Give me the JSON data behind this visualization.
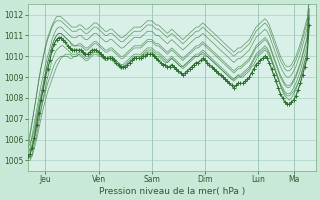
{
  "title": "",
  "xlabel": "Pression niveau de la mer( hPa )",
  "ylabel": "",
  "bg_color": "#c8e8d8",
  "plot_bg_color": "#d8f0e8",
  "grid_color": "#a0c8b8",
  "line_color": "#2d6e2d",
  "ylim": [
    1004.5,
    1012.5
  ],
  "xlim": [
    0,
    130
  ],
  "day_ticks": [
    8,
    32,
    56,
    80,
    104,
    120
  ],
  "day_labels": [
    "Jeu",
    "Ven",
    "Sam",
    "Dim",
    "Lun",
    "Ma"
  ],
  "yticks": [
    1005,
    1006,
    1007,
    1008,
    1009,
    1010,
    1011,
    1012
  ],
  "series": [
    [
      1005.2,
      1005.1,
      1005.3,
      1005.8,
      1006.2,
      1006.8,
      1007.4,
      1007.9,
      1008.3,
      1008.7,
      1009.0,
      1009.3,
      1009.6,
      1009.8,
      1009.9,
      1010.0,
      1010.0,
      1010.0,
      1010.0,
      1009.9,
      1009.9,
      1010.0,
      1010.0,
      1010.1,
      1010.0,
      1009.9,
      1009.8,
      1009.8,
      1009.9,
      1010.0,
      1010.1,
      1010.1,
      1010.0,
      1010.0,
      1009.9,
      1009.9,
      1009.9,
      1010.0,
      1009.9,
      1009.8,
      1009.7,
      1009.6,
      1009.5,
      1009.5,
      1009.6,
      1009.7,
      1009.8,
      1009.9,
      1010.0,
      1010.0,
      1010.0,
      1010.0,
      1010.1,
      1010.1,
      1010.2,
      1010.2,
      1010.2,
      1010.1,
      1010.0,
      1010.0,
      1009.9,
      1009.8,
      1009.7,
      1009.7,
      1009.8,
      1009.9,
      1009.8,
      1009.7,
      1009.6,
      1009.5,
      1009.5,
      1009.6,
      1009.7,
      1009.8,
      1009.9,
      1010.0,
      1010.0,
      1010.0,
      1010.1,
      1010.1,
      1010.0,
      1010.0,
      1009.9,
      1009.8,
      1009.7,
      1009.6,
      1009.5,
      1009.4,
      1009.3,
      1009.2,
      1009.1,
      1009.0,
      1008.9,
      1008.9,
      1009.0,
      1009.1,
      1009.0,
      1009.0,
      1009.1,
      1009.2,
      1009.3,
      1009.5,
      1009.6,
      1009.8,
      1010.0,
      1010.1,
      1010.2,
      1010.3,
      1010.2,
      1010.0,
      1009.8,
      1009.5,
      1009.2,
      1008.9,
      1008.6,
      1008.4,
      1008.2,
      1008.1,
      1008.1,
      1008.2,
      1008.3,
      1008.5,
      1008.7,
      1009.0,
      1009.3,
      1009.7,
      1010.1,
      1011.8
    ],
    [
      1005.0,
      1005.0,
      1005.2,
      1005.6,
      1006.0,
      1006.5,
      1007.0,
      1007.5,
      1007.9,
      1008.3,
      1008.6,
      1008.9,
      1009.2,
      1009.5,
      1009.7,
      1009.9,
      1010.0,
      1010.1,
      1010.1,
      1010.1,
      1010.0,
      1010.0,
      1010.0,
      1010.1,
      1010.1,
      1010.0,
      1009.9,
      1009.9,
      1010.0,
      1010.1,
      1010.2,
      1010.2,
      1010.1,
      1010.0,
      1009.9,
      1009.8,
      1009.8,
      1009.9,
      1009.8,
      1009.7,
      1009.6,
      1009.5,
      1009.4,
      1009.4,
      1009.5,
      1009.6,
      1009.7,
      1009.8,
      1009.9,
      1010.0,
      1010.0,
      1010.0,
      1010.1,
      1010.2,
      1010.3,
      1010.3,
      1010.3,
      1010.2,
      1010.1,
      1010.1,
      1010.0,
      1009.9,
      1009.8,
      1009.7,
      1009.8,
      1009.9,
      1009.8,
      1009.7,
      1009.6,
      1009.5,
      1009.4,
      1009.5,
      1009.6,
      1009.7,
      1009.8,
      1009.9,
      1010.0,
      1010.0,
      1010.1,
      1010.2,
      1010.1,
      1010.0,
      1009.9,
      1009.8,
      1009.7,
      1009.6,
      1009.5,
      1009.4,
      1009.3,
      1009.2,
      1009.1,
      1009.0,
      1008.9,
      1008.8,
      1008.9,
      1009.0,
      1009.0,
      1009.1,
      1009.2,
      1009.3,
      1009.4,
      1009.6,
      1009.8,
      1010.0,
      1010.1,
      1010.2,
      1010.3,
      1010.4,
      1010.3,
      1010.1,
      1009.8,
      1009.5,
      1009.2,
      1008.9,
      1008.6,
      1008.3,
      1008.1,
      1008.0,
      1007.9,
      1008.0,
      1008.2,
      1008.4,
      1008.7,
      1009.0,
      1009.4,
      1009.8,
      1010.2,
      1011.9
    ],
    [
      1005.4,
      1005.5,
      1005.7,
      1006.0,
      1006.5,
      1007.0,
      1007.5,
      1008.0,
      1008.5,
      1009.0,
      1009.4,
      1009.8,
      1010.1,
      1010.3,
      1010.4,
      1010.5,
      1010.5,
      1010.4,
      1010.3,
      1010.2,
      1010.1,
      1010.1,
      1010.1,
      1010.2,
      1010.2,
      1010.1,
      1010.0,
      1010.0,
      1010.1,
      1010.2,
      1010.3,
      1010.3,
      1010.2,
      1010.1,
      1010.0,
      1009.9,
      1009.9,
      1010.0,
      1010.0,
      1009.9,
      1009.8,
      1009.7,
      1009.6,
      1009.6,
      1009.7,
      1009.8,
      1009.9,
      1010.0,
      1010.1,
      1010.1,
      1010.1,
      1010.1,
      1010.2,
      1010.3,
      1010.4,
      1010.4,
      1010.4,
      1010.3,
      1010.2,
      1010.2,
      1010.1,
      1010.0,
      1009.9,
      1009.8,
      1009.9,
      1010.0,
      1009.9,
      1009.8,
      1009.7,
      1009.6,
      1009.5,
      1009.6,
      1009.7,
      1009.8,
      1009.9,
      1010.0,
      1010.1,
      1010.1,
      1010.2,
      1010.3,
      1010.2,
      1010.1,
      1010.0,
      1009.9,
      1009.8,
      1009.7,
      1009.6,
      1009.5,
      1009.4,
      1009.3,
      1009.2,
      1009.1,
      1009.0,
      1008.9,
      1009.0,
      1009.1,
      1009.1,
      1009.2,
      1009.3,
      1009.4,
      1009.5,
      1009.7,
      1009.9,
      1010.1,
      1010.2,
      1010.3,
      1010.4,
      1010.5,
      1010.4,
      1010.2,
      1009.9,
      1009.6,
      1009.3,
      1009.0,
      1008.7,
      1008.5,
      1008.3,
      1008.2,
      1008.2,
      1008.3,
      1008.5,
      1008.7,
      1009.0,
      1009.3,
      1009.7,
      1010.1,
      1010.5,
      1012.0
    ],
    [
      1005.6,
      1005.8,
      1006.1,
      1006.5,
      1007.1,
      1007.7,
      1008.2,
      1008.7,
      1009.2,
      1009.7,
      1010.1,
      1010.5,
      1010.8,
      1011.0,
      1011.1,
      1011.1,
      1011.0,
      1010.9,
      1010.8,
      1010.7,
      1010.5,
      1010.5,
      1010.5,
      1010.6,
      1010.6,
      1010.5,
      1010.4,
      1010.4,
      1010.5,
      1010.6,
      1010.7,
      1010.7,
      1010.6,
      1010.5,
      1010.4,
      1010.3,
      1010.3,
      1010.4,
      1010.4,
      1010.3,
      1010.2,
      1010.1,
      1010.0,
      1010.0,
      1010.1,
      1010.2,
      1010.3,
      1010.4,
      1010.5,
      1010.5,
      1010.5,
      1010.5,
      1010.6,
      1010.7,
      1010.8,
      1010.8,
      1010.8,
      1010.7,
      1010.6,
      1010.6,
      1010.5,
      1010.4,
      1010.3,
      1010.2,
      1010.3,
      1010.4,
      1010.3,
      1010.2,
      1010.1,
      1010.0,
      1009.9,
      1010.0,
      1010.1,
      1010.2,
      1010.3,
      1010.4,
      1010.5,
      1010.5,
      1010.6,
      1010.7,
      1010.6,
      1010.5,
      1010.4,
      1010.3,
      1010.2,
      1010.1,
      1010.0,
      1009.9,
      1009.8,
      1009.7,
      1009.6,
      1009.5,
      1009.4,
      1009.3,
      1009.4,
      1009.5,
      1009.5,
      1009.6,
      1009.7,
      1009.8,
      1009.9,
      1010.1,
      1010.3,
      1010.5,
      1010.6,
      1010.7,
      1010.8,
      1010.9,
      1010.8,
      1010.6,
      1010.3,
      1010.0,
      1009.7,
      1009.4,
      1009.1,
      1008.9,
      1008.7,
      1008.6,
      1008.6,
      1008.7,
      1008.9,
      1009.1,
      1009.4,
      1009.7,
      1010.1,
      1010.5,
      1010.9,
      1012.3
    ],
    [
      1005.0,
      1005.3,
      1005.8,
      1006.3,
      1006.9,
      1007.5,
      1008.0,
      1008.6,
      1009.2,
      1009.7,
      1010.1,
      1010.5,
      1010.8,
      1011.0,
      1011.1,
      1011.1,
      1011.0,
      1010.9,
      1010.8,
      1010.7,
      1010.6,
      1010.5,
      1010.5,
      1010.5,
      1010.5,
      1010.4,
      1010.3,
      1010.3,
      1010.4,
      1010.5,
      1010.6,
      1010.6,
      1010.5,
      1010.4,
      1010.3,
      1010.2,
      1010.2,
      1010.3,
      1010.3,
      1010.2,
      1010.1,
      1010.0,
      1009.9,
      1009.9,
      1010.0,
      1010.1,
      1010.2,
      1010.3,
      1010.4,
      1010.4,
      1010.4,
      1010.4,
      1010.5,
      1010.6,
      1010.7,
      1010.7,
      1010.7,
      1010.6,
      1010.5,
      1010.5,
      1010.4,
      1010.3,
      1010.2,
      1010.1,
      1010.2,
      1010.3,
      1010.2,
      1010.1,
      1010.0,
      1009.9,
      1009.8,
      1009.9,
      1010.0,
      1010.1,
      1010.2,
      1010.3,
      1010.4,
      1010.4,
      1010.5,
      1010.6,
      1010.5,
      1010.4,
      1010.3,
      1010.2,
      1010.1,
      1010.0,
      1009.9,
      1009.8,
      1009.7,
      1009.6,
      1009.5,
      1009.4,
      1009.3,
      1009.2,
      1009.3,
      1009.4,
      1009.4,
      1009.5,
      1009.6,
      1009.7,
      1009.8,
      1010.0,
      1010.2,
      1010.4,
      1010.5,
      1010.6,
      1010.7,
      1010.8,
      1010.7,
      1010.5,
      1010.2,
      1009.9,
      1009.6,
      1009.3,
      1009.0,
      1008.8,
      1008.6,
      1008.5,
      1008.5,
      1008.6,
      1008.8,
      1009.0,
      1009.3,
      1009.6,
      1010.0,
      1010.4,
      1010.8,
      1012.2
    ],
    [
      1005.2,
      1005.6,
      1006.2,
      1006.8,
      1007.4,
      1008.0,
      1008.6,
      1009.1,
      1009.6,
      1010.0,
      1010.4,
      1010.8,
      1011.1,
      1011.3,
      1011.4,
      1011.4,
      1011.3,
      1011.2,
      1011.1,
      1011.0,
      1010.9,
      1010.9,
      1010.9,
      1011.0,
      1011.0,
      1010.9,
      1010.8,
      1010.8,
      1010.9,
      1011.0,
      1011.1,
      1011.1,
      1011.0,
      1010.9,
      1010.8,
      1010.7,
      1010.7,
      1010.8,
      1010.8,
      1010.7,
      1010.6,
      1010.5,
      1010.4,
      1010.4,
      1010.5,
      1010.6,
      1010.7,
      1010.8,
      1010.9,
      1010.9,
      1010.9,
      1010.9,
      1011.0,
      1011.1,
      1011.2,
      1011.2,
      1011.2,
      1011.1,
      1011.0,
      1011.0,
      1010.9,
      1010.8,
      1010.7,
      1010.6,
      1010.7,
      1010.8,
      1010.7,
      1010.6,
      1010.5,
      1010.4,
      1010.3,
      1010.4,
      1010.5,
      1010.6,
      1010.7,
      1010.8,
      1010.9,
      1010.9,
      1011.0,
      1011.1,
      1011.0,
      1010.9,
      1010.8,
      1010.7,
      1010.6,
      1010.5,
      1010.4,
      1010.3,
      1010.2,
      1010.1,
      1010.0,
      1009.9,
      1009.8,
      1009.7,
      1009.8,
      1009.9,
      1009.9,
      1010.0,
      1010.1,
      1010.2,
      1010.3,
      1010.5,
      1010.7,
      1010.9,
      1011.0,
      1011.1,
      1011.2,
      1011.3,
      1011.2,
      1011.0,
      1010.7,
      1010.4,
      1010.1,
      1009.8,
      1009.5,
      1009.3,
      1009.1,
      1009.0,
      1009.0,
      1009.1,
      1009.3,
      1009.5,
      1009.8,
      1010.1,
      1010.5,
      1010.9,
      1011.3,
      1012.7
    ],
    [
      1005.8,
      1006.3,
      1006.9,
      1007.5,
      1008.1,
      1008.8,
      1009.4,
      1009.9,
      1010.4,
      1010.8,
      1011.1,
      1011.4,
      1011.6,
      1011.7,
      1011.7,
      1011.7,
      1011.6,
      1011.5,
      1011.4,
      1011.3,
      1011.2,
      1011.2,
      1011.2,
      1011.3,
      1011.3,
      1011.2,
      1011.1,
      1011.1,
      1011.2,
      1011.3,
      1011.4,
      1011.4,
      1011.3,
      1011.2,
      1011.1,
      1011.0,
      1011.0,
      1011.1,
      1011.1,
      1011.0,
      1010.9,
      1010.8,
      1010.7,
      1010.7,
      1010.8,
      1010.9,
      1011.0,
      1011.1,
      1011.2,
      1011.2,
      1011.2,
      1011.2,
      1011.3,
      1011.4,
      1011.5,
      1011.5,
      1011.5,
      1011.4,
      1011.3,
      1011.3,
      1011.2,
      1011.1,
      1011.0,
      1010.9,
      1011.0,
      1011.1,
      1011.0,
      1010.9,
      1010.8,
      1010.7,
      1010.6,
      1010.7,
      1010.8,
      1010.9,
      1011.0,
      1011.1,
      1011.2,
      1011.2,
      1011.3,
      1011.4,
      1011.3,
      1011.2,
      1011.1,
      1011.0,
      1010.9,
      1010.8,
      1010.7,
      1010.6,
      1010.5,
      1010.4,
      1010.3,
      1010.2,
      1010.1,
      1010.0,
      1010.1,
      1010.2,
      1010.2,
      1010.3,
      1010.4,
      1010.5,
      1010.6,
      1010.8,
      1011.0,
      1011.2,
      1011.3,
      1011.4,
      1011.5,
      1011.6,
      1011.5,
      1011.3,
      1011.0,
      1010.7,
      1010.4,
      1010.1,
      1009.8,
      1009.6,
      1009.4,
      1009.3,
      1009.3,
      1009.4,
      1009.6,
      1009.8,
      1010.1,
      1010.4,
      1010.8,
      1011.2,
      1011.6,
      1012.9
    ],
    [
      1005.5,
      1006.1,
      1006.8,
      1007.5,
      1008.2,
      1008.9,
      1009.5,
      1010.0,
      1010.5,
      1010.9,
      1011.2,
      1011.5,
      1011.7,
      1011.9,
      1011.9,
      1011.9,
      1011.8,
      1011.7,
      1011.6,
      1011.5,
      1011.4,
      1011.4,
      1011.4,
      1011.5,
      1011.5,
      1011.4,
      1011.3,
      1011.3,
      1011.4,
      1011.5,
      1011.6,
      1011.6,
      1011.5,
      1011.4,
      1011.3,
      1011.2,
      1011.2,
      1011.3,
      1011.3,
      1011.2,
      1011.1,
      1011.0,
      1010.9,
      1010.9,
      1011.0,
      1011.1,
      1011.2,
      1011.3,
      1011.4,
      1011.4,
      1011.4,
      1011.4,
      1011.5,
      1011.6,
      1011.7,
      1011.7,
      1011.7,
      1011.6,
      1011.5,
      1011.5,
      1011.4,
      1011.3,
      1011.2,
      1011.1,
      1011.2,
      1011.3,
      1011.2,
      1011.1,
      1011.0,
      1010.9,
      1010.8,
      1010.9,
      1011.0,
      1011.1,
      1011.2,
      1011.3,
      1011.4,
      1011.4,
      1011.5,
      1011.6,
      1011.5,
      1011.4,
      1011.3,
      1011.2,
      1011.1,
      1011.0,
      1010.9,
      1010.8,
      1010.7,
      1010.6,
      1010.5,
      1010.4,
      1010.3,
      1010.2,
      1010.3,
      1010.4,
      1010.4,
      1010.5,
      1010.6,
      1010.7,
      1010.8,
      1011.0,
      1011.2,
      1011.4,
      1011.5,
      1011.6,
      1011.7,
      1011.8,
      1011.7,
      1011.5,
      1011.2,
      1010.9,
      1010.6,
      1010.3,
      1010.0,
      1009.8,
      1009.6,
      1009.5,
      1009.5,
      1009.6,
      1009.8,
      1010.0,
      1010.3,
      1010.6,
      1011.0,
      1011.4,
      1011.8,
      1011.8
    ]
  ],
  "main_series": [
    1005.2,
    1005.3,
    1005.6,
    1006.1,
    1006.7,
    1007.3,
    1007.9,
    1008.4,
    1009.0,
    1009.4,
    1009.8,
    1010.3,
    1010.6,
    1010.8,
    1010.9,
    1010.9,
    1010.8,
    1010.7,
    1010.5,
    1010.4,
    1010.3,
    1010.3,
    1010.3,
    1010.3,
    1010.3,
    1010.2,
    1010.1,
    1010.1,
    1010.2,
    1010.3,
    1010.3,
    1010.3,
    1010.2,
    1010.1,
    1010.0,
    1009.9,
    1009.9,
    1009.9,
    1009.9,
    1009.8,
    1009.7,
    1009.6,
    1009.5,
    1009.5,
    1009.5,
    1009.6,
    1009.7,
    1009.8,
    1009.9,
    1009.9,
    1009.9,
    1009.9,
    1010.0,
    1010.0,
    1010.1,
    1010.1,
    1010.1,
    1010.0,
    1009.9,
    1009.8,
    1009.7,
    1009.6,
    1009.6,
    1009.5,
    1009.5,
    1009.6,
    1009.5,
    1009.4,
    1009.3,
    1009.2,
    1009.1,
    1009.2,
    1009.3,
    1009.4,
    1009.5,
    1009.6,
    1009.7,
    1009.7,
    1009.8,
    1009.9,
    1009.8,
    1009.7,
    1009.6,
    1009.5,
    1009.4,
    1009.3,
    1009.2,
    1009.1,
    1009.0,
    1008.9,
    1008.8,
    1008.7,
    1008.6,
    1008.5,
    1008.6,
    1008.7,
    1008.7,
    1008.7,
    1008.8,
    1008.9,
    1009.0,
    1009.2,
    1009.4,
    1009.6,
    1009.7,
    1009.8,
    1009.9,
    1010.0,
    1009.9,
    1009.7,
    1009.4,
    1009.1,
    1008.8,
    1008.5,
    1008.2,
    1008.0,
    1007.8,
    1007.7,
    1007.7,
    1007.8,
    1007.9,
    1008.1,
    1008.4,
    1008.7,
    1009.1,
    1009.5,
    1009.9,
    1011.5
  ]
}
